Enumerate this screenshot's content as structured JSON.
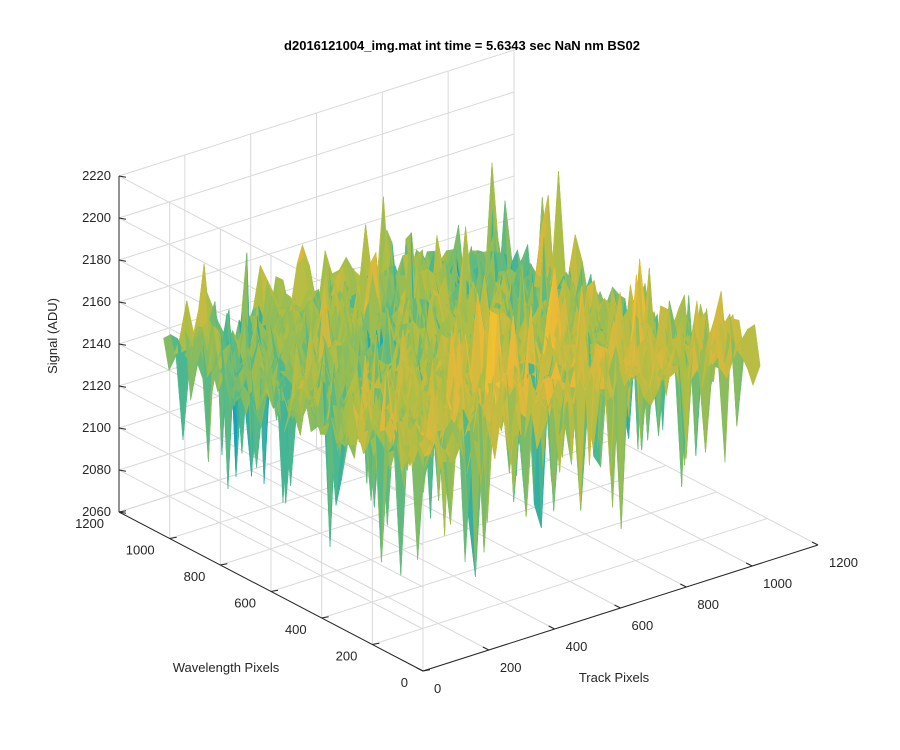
{
  "chart_data": {
    "type": "surface",
    "title": "d2016121004_img.mat int time = 5.6343 sec  NaN nm BS02",
    "xlabel": "Track Pixels",
    "ylabel": "Wavelength Pixels",
    "zlabel": "Signal (ADU)",
    "xlim": [
      0,
      1200
    ],
    "ylim": [
      0,
      1200
    ],
    "zlim": [
      2060,
      2220
    ],
    "xticks": [
      "0",
      "200",
      "400",
      "600",
      "800",
      "1000",
      "1200"
    ],
    "yticks": [
      "0",
      "200",
      "400",
      "600",
      "800",
      "1000",
      "1200"
    ],
    "zticks": [
      "2060",
      "2080",
      "2100",
      "2120",
      "2140",
      "2160",
      "2180",
      "2200",
      "2220"
    ],
    "grid": true,
    "colormap": "parula",
    "data_extent": {
      "x": [
        0,
        1024
      ],
      "y": [
        0,
        1024
      ]
    },
    "surface_summary": {
      "typical_signal": 2150,
      "min_signal": 2065,
      "max_signal": 2200,
      "description_of_trend": "higher signal near low wavelength pixels, lower at high wavelength/track pixels"
    },
    "colors": {
      "low": "#0c6fbf",
      "mid_low": "#1aa6b5",
      "mid": "#7bbf6a",
      "high": "#e8b83a",
      "grid": "#d9d9d9",
      "axis": "#262626"
    }
  }
}
